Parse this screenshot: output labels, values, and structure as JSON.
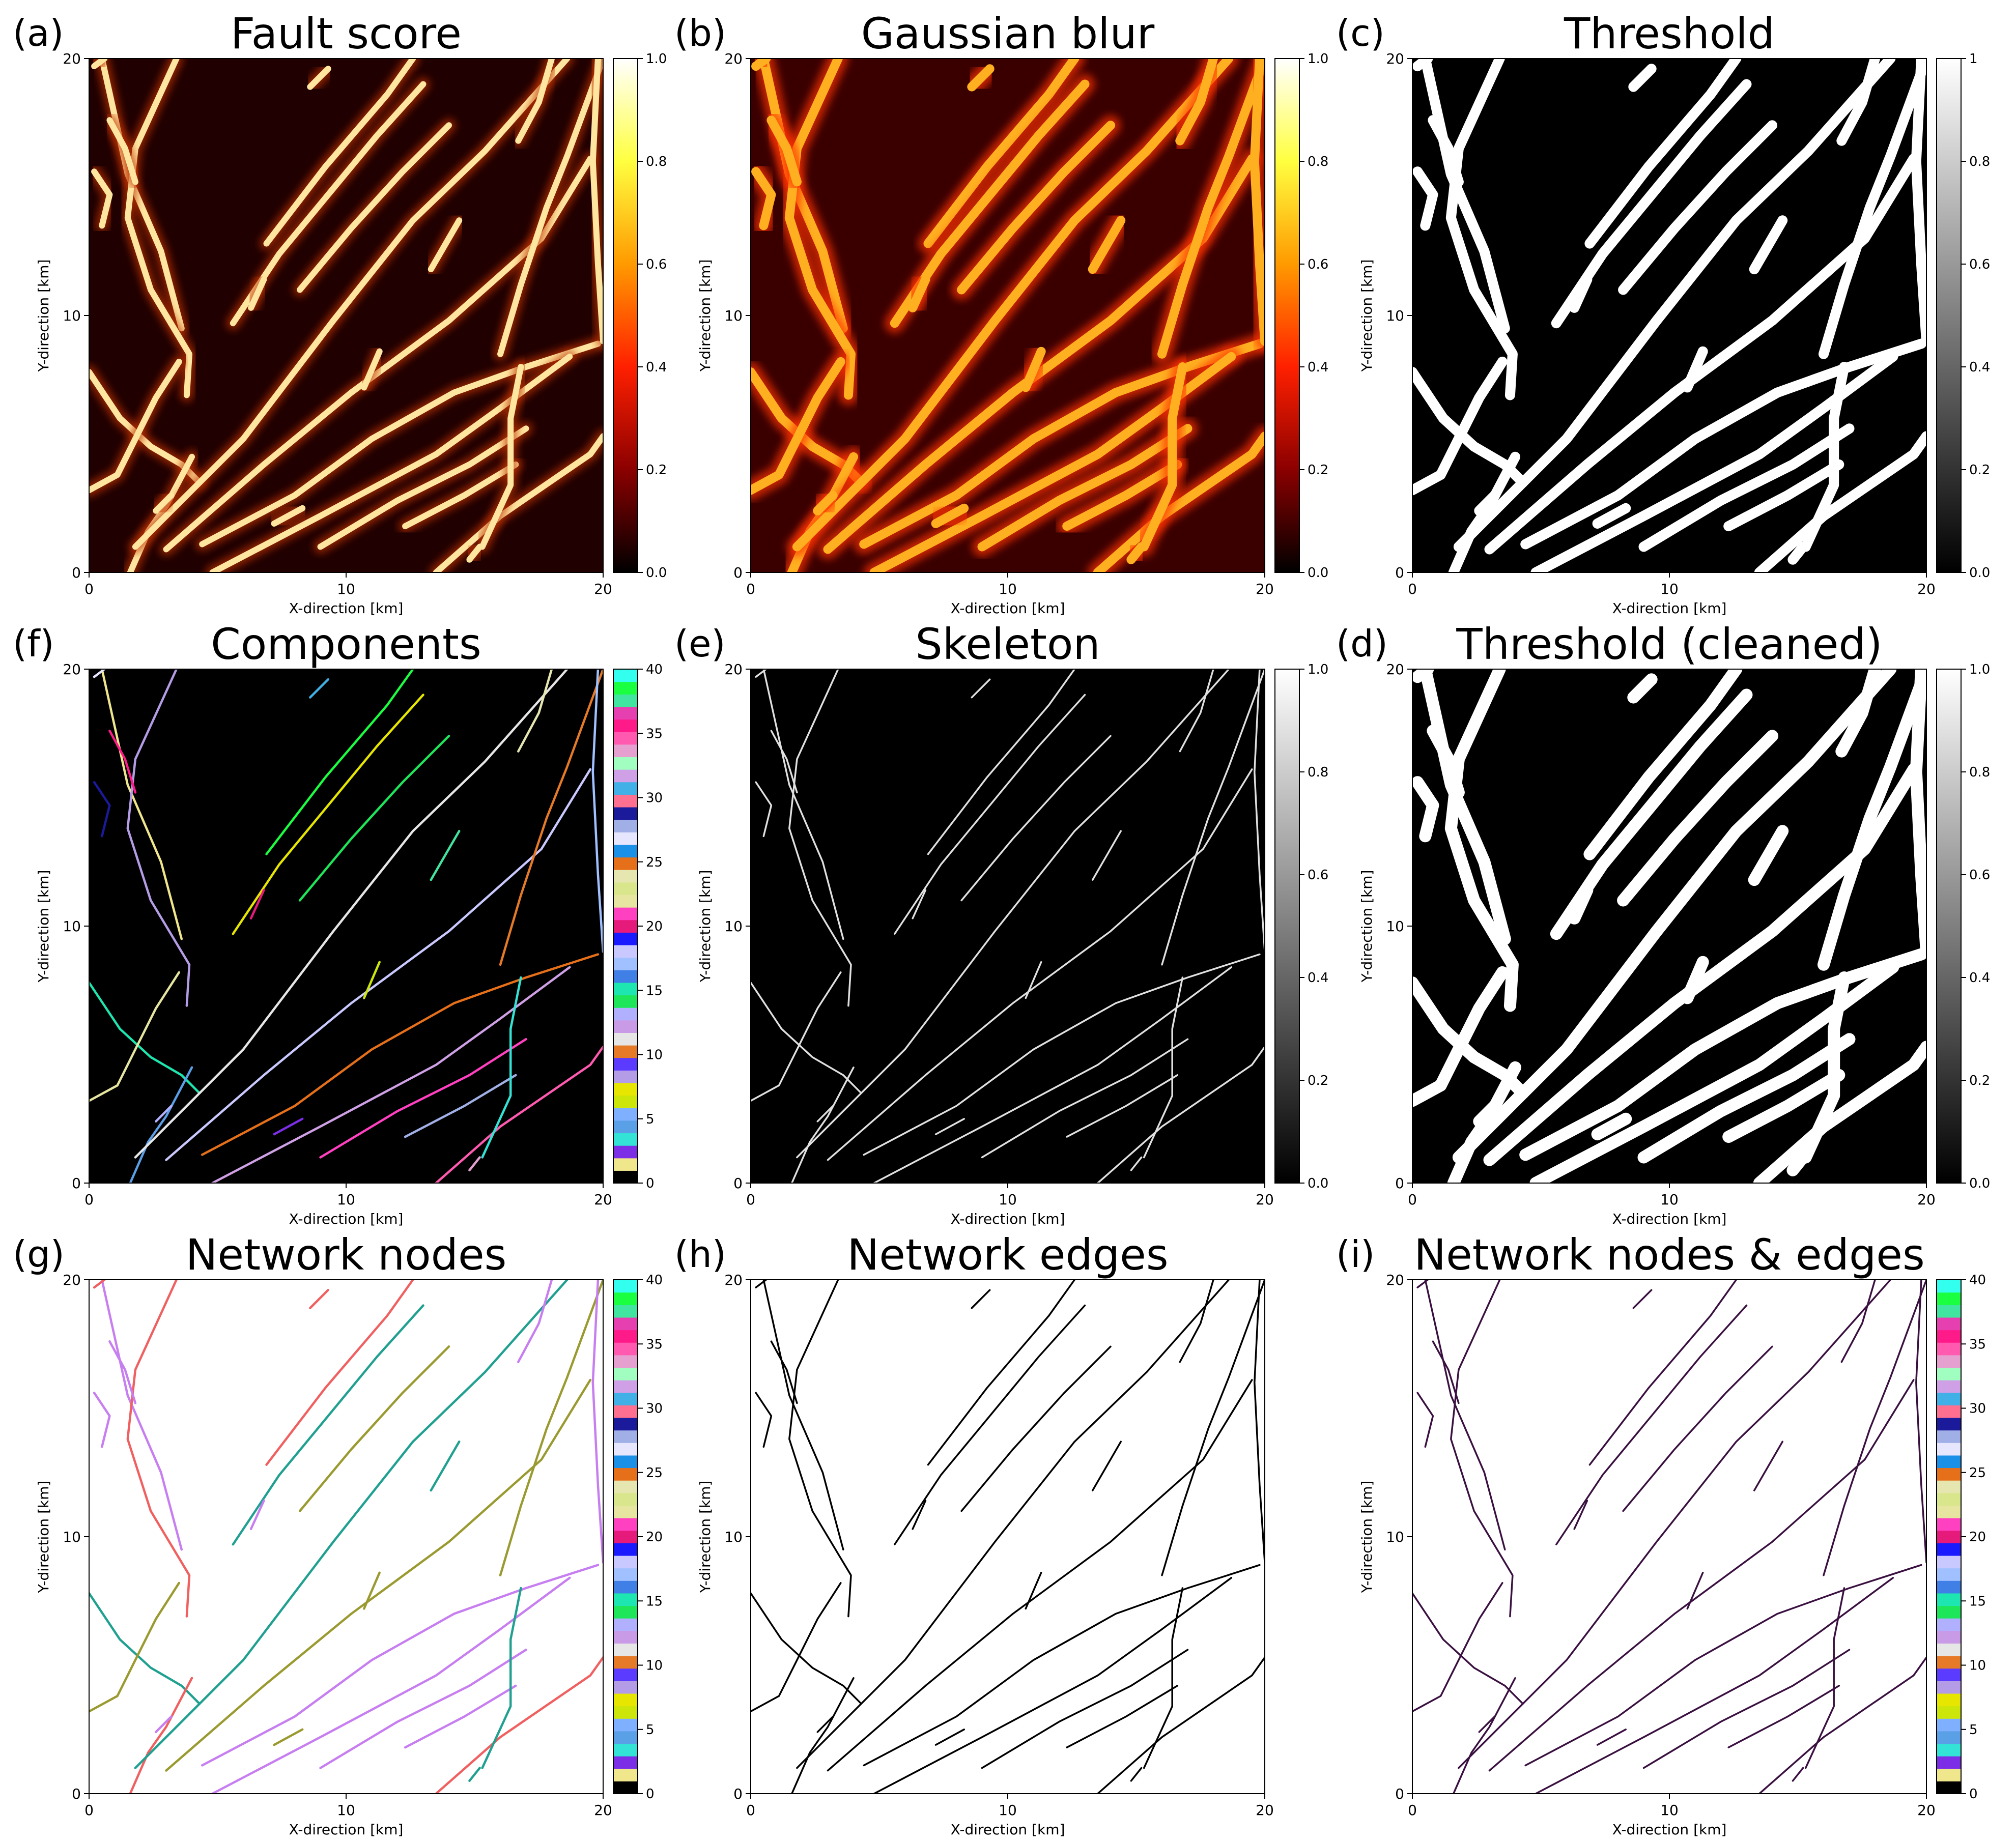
{
  "chart_data": [
    {
      "type": "heatmap",
      "panel_label": "(a)",
      "title": "Fault score",
      "xlabel": "X-direction [km]",
      "ylabel": "Y-direction [km]",
      "xlim": [
        0,
        20
      ],
      "ylim": [
        0,
        20
      ],
      "x_ticks": [
        0,
        10,
        20
      ],
      "y_ticks": [
        0,
        10,
        20
      ],
      "colormap": "hot",
      "background": "#200000",
      "line_color": "#ffe6a0",
      "colorbar": {
        "type": "continuous",
        "range": [
          0,
          1
        ],
        "ticks": [
          "0.0",
          "0.2",
          "0.4",
          "0.6",
          "0.8",
          "1.0"
        ],
        "stops": [
          "#000000",
          "#8b0000",
          "#ff2000",
          "#ff9a00",
          "#ffff40",
          "#ffffff"
        ]
      }
    },
    {
      "type": "heatmap",
      "panel_label": "(b)",
      "title": "Gaussian blur",
      "xlabel": "X-direction [km]",
      "ylabel": "Y-direction [km]",
      "xlim": [
        0,
        20
      ],
      "ylim": [
        0,
        20
      ],
      "x_ticks": [
        0,
        10,
        20
      ],
      "y_ticks": [
        0,
        10,
        20
      ],
      "colormap": "hot",
      "background": "#3a0000",
      "line_color": "#ffb020",
      "colorbar": {
        "type": "continuous",
        "range": [
          0,
          1
        ],
        "ticks": [
          "0.0",
          "0.2",
          "0.4",
          "0.6",
          "0.8",
          "1.0"
        ],
        "stops": [
          "#000000",
          "#8b0000",
          "#ff2000",
          "#ff9a00",
          "#ffff40",
          "#ffffff"
        ]
      }
    },
    {
      "type": "heatmap",
      "panel_label": "(c)",
      "title": "Threshold",
      "xlabel": "X-direction [km]",
      "ylabel": "Y-direction [km]",
      "xlim": [
        0,
        20
      ],
      "ylim": [
        0,
        20
      ],
      "x_ticks": [
        0,
        10,
        20
      ],
      "y_ticks": [
        0,
        10,
        20
      ],
      "colormap": "gray",
      "background": "#000000",
      "line_color": "#ffffff",
      "colorbar": {
        "type": "continuous",
        "range": [
          0,
          1
        ],
        "ticks": [
          "0.0",
          "0.2",
          "0.4",
          "0.6",
          "0.8",
          "1"
        ],
        "stops": [
          "#000000",
          "#ffffff"
        ]
      }
    },
    {
      "type": "heatmap",
      "panel_label": "(f)",
      "title": "Components",
      "xlabel": "X-direction [km]",
      "ylabel": "Y-direction [km]",
      "xlim": [
        0,
        20
      ],
      "ylim": [
        0,
        20
      ],
      "x_ticks": [
        0,
        10,
        20
      ],
      "y_ticks": [
        0,
        10,
        20
      ],
      "colormap": "categorical",
      "background": "#000000",
      "line_color": "multi",
      "colorbar": {
        "type": "discrete",
        "range": [
          0,
          40
        ],
        "ticks": [
          "0",
          "5",
          "10",
          "15",
          "20",
          "25",
          "30",
          "35",
          "40"
        ]
      }
    },
    {
      "type": "heatmap",
      "panel_label": "(e)",
      "title": "Skeleton",
      "xlabel": "X-direction [km]",
      "ylabel": "Y-direction [km]",
      "xlim": [
        0,
        20
      ],
      "ylim": [
        0,
        20
      ],
      "x_ticks": [
        0,
        10,
        20
      ],
      "y_ticks": [
        0,
        10,
        20
      ],
      "colormap": "gray",
      "background": "#000000",
      "line_color": "#e0e0e0",
      "colorbar": {
        "type": "continuous",
        "range": [
          0,
          1
        ],
        "ticks": [
          "0.0",
          "0.2",
          "0.4",
          "0.6",
          "0.8",
          "1.0"
        ],
        "stops": [
          "#000000",
          "#ffffff"
        ]
      }
    },
    {
      "type": "heatmap",
      "panel_label": "(d)",
      "title": "Threshold (cleaned)",
      "xlabel": "X-direction [km]",
      "ylabel": "Y-direction [km]",
      "xlim": [
        0,
        20
      ],
      "ylim": [
        0,
        20
      ],
      "x_ticks": [
        0,
        10,
        20
      ],
      "y_ticks": [
        0,
        10,
        20
      ],
      "colormap": "gray",
      "background": "#000000",
      "line_color": "#ffffff",
      "colorbar": {
        "type": "continuous",
        "range": [
          0,
          1
        ],
        "ticks": [
          "0.0",
          "0.2",
          "0.4",
          "0.6",
          "0.8",
          "1.0"
        ],
        "stops": [
          "#000000",
          "#ffffff"
        ]
      }
    },
    {
      "type": "heatmap",
      "panel_label": "(g)",
      "title": "Network nodes",
      "xlabel": "X-direction [km]",
      "ylabel": "Y-direction [km]",
      "xlim": [
        0,
        20
      ],
      "ylim": [
        0,
        20
      ],
      "x_ticks": [
        0,
        10,
        20
      ],
      "y_ticks": [
        0,
        10,
        20
      ],
      "colormap": "categorical",
      "background": "#ffffff",
      "line_color": "multi-light",
      "colorbar": {
        "type": "discrete",
        "range": [
          0,
          40
        ],
        "ticks": [
          "0",
          "5",
          "10",
          "15",
          "20",
          "25",
          "30",
          "35",
          "40"
        ]
      }
    },
    {
      "type": "heatmap",
      "panel_label": "(h)",
      "title": "Network edges",
      "xlabel": "X-direction [km]",
      "ylabel": "Y-direction [km]",
      "xlim": [
        0,
        20
      ],
      "ylim": [
        0,
        20
      ],
      "x_ticks": [
        0,
        10,
        20
      ],
      "y_ticks": [
        0,
        10,
        20
      ],
      "colormap": "none",
      "background": "#ffffff",
      "line_color": "#000000"
    },
    {
      "type": "heatmap",
      "panel_label": "(i)",
      "title": "Network nodes & edges",
      "xlabel": "X-direction [km]",
      "ylabel": "Y-direction [km]",
      "xlim": [
        0,
        20
      ],
      "ylim": [
        0,
        20
      ],
      "x_ticks": [
        0,
        10,
        20
      ],
      "y_ticks": [
        0,
        10,
        20
      ],
      "colormap": "categorical",
      "background": "#ffffff",
      "line_color": "#3a1040",
      "colorbar": {
        "type": "discrete",
        "range": [
          0,
          40
        ],
        "ticks": [
          "0",
          "5",
          "10",
          "15",
          "20",
          "25",
          "30",
          "35",
          "40"
        ]
      }
    }
  ],
  "discrete_palette": [
    "#000000",
    "#f0e68c",
    "#7b2ee6",
    "#33e3d6",
    "#5aa0e6",
    "#7fb0ff",
    "#cde60a",
    "#e6e600",
    "#b59ce6",
    "#5a3bff",
    "#e67a26",
    "#e6e6e6",
    "#c99ae6",
    "#b0b0ff",
    "#1ee65a",
    "#1ee6b0",
    "#3f7fe6",
    "#a0c0ff",
    "#c9c9ff",
    "#1a1aff",
    "#e61a7a",
    "#ff40c0",
    "#e6e6a0",
    "#d9e68c",
    "#e6e6b0",
    "#e6701a",
    "#1a90e6",
    "#e6e6ff",
    "#a0b0e6",
    "#1a1a9a",
    "#ff7090",
    "#40b0e6",
    "#d0a0e6",
    "#a0ffc0",
    "#e6a0d0",
    "#ff5ab0",
    "#ff1a8a",
    "#e640b0",
    "#40e6a0",
    "#1aff40",
    "#33ffee"
  ],
  "faults": [
    [
      [
        0.5,
        20
      ],
      [
        1.5,
        15.5
      ],
      [
        2.8,
        12.5
      ],
      [
        3.6,
        9.5
      ]
    ],
    [
      [
        3.4,
        20
      ],
      [
        1.8,
        16.5
      ],
      [
        1.5,
        13.8
      ],
      [
        2.4,
        11
      ],
      [
        3.9,
        8.5
      ],
      [
        3.8,
        6.9
      ]
    ],
    [
      [
        0.0,
        7.8
      ],
      [
        1.2,
        6
      ],
      [
        2.4,
        4.9
      ],
      [
        3.6,
        4.2
      ],
      [
        4.3,
        3.5
      ]
    ],
    [
      [
        0.0,
        3.2
      ],
      [
        1.1,
        3.8
      ],
      [
        1.9,
        5.4
      ],
      [
        2.6,
        6.8
      ],
      [
        3.5,
        8.2
      ]
    ],
    [
      [
        0.2,
        15.6
      ],
      [
        0.8,
        14.7
      ],
      [
        0.5,
        13.5
      ]
    ],
    [
      [
        0.8,
        17.6
      ],
      [
        1.4,
        16.5
      ],
      [
        1.8,
        15.2
      ]
    ],
    [
      [
        1.6,
        0
      ],
      [
        2.3,
        1.6
      ],
      [
        3.0,
        2.6
      ],
      [
        4.0,
        4.5
      ]
    ],
    [
      [
        1.8,
        1.0
      ],
      [
        6.0,
        5.2
      ],
      [
        9.5,
        9.8
      ],
      [
        12.6,
        13.7
      ],
      [
        15.4,
        16.4
      ],
      [
        18.6,
        20
      ]
    ],
    [
      [
        3.0,
        0.9
      ],
      [
        6.8,
        4.2
      ],
      [
        10.2,
        7.0
      ],
      [
        14.0,
        9.8
      ],
      [
        17.6,
        13.0
      ],
      [
        19.5,
        16.1
      ]
    ],
    [
      [
        4.4,
        1.1
      ],
      [
        8.0,
        3.0
      ],
      [
        11.0,
        5.2
      ],
      [
        14.2,
        7.0
      ],
      [
        17.0,
        8.0
      ],
      [
        19.8,
        8.9
      ]
    ],
    [
      [
        4.8,
        0.0
      ],
      [
        9.0,
        2.2
      ],
      [
        13.5,
        4.6
      ],
      [
        16.0,
        6.4
      ],
      [
        18.7,
        8.4
      ]
    ],
    [
      [
        6.9,
        12.8
      ],
      [
        9.2,
        15.8
      ],
      [
        11.6,
        18.6
      ],
      [
        12.6,
        20.0
      ]
    ],
    [
      [
        5.6,
        9.7
      ],
      [
        7.4,
        12.4
      ],
      [
        9.3,
        14.7
      ],
      [
        11.2,
        17.0
      ],
      [
        13.0,
        19.0
      ]
    ],
    [
      [
        8.2,
        11.0
      ],
      [
        10.2,
        13.4
      ],
      [
        12.2,
        15.6
      ],
      [
        14.0,
        17.4
      ]
    ],
    [
      [
        9.0,
        1.0
      ],
      [
        12.0,
        2.8
      ],
      [
        14.8,
        4.2
      ],
      [
        17.0,
        5.6
      ]
    ],
    [
      [
        12.3,
        1.8
      ],
      [
        14.6,
        3.0
      ],
      [
        16.6,
        4.2
      ]
    ],
    [
      [
        13.5,
        0.0
      ],
      [
        16.0,
        2.2
      ],
      [
        19.5,
        4.6
      ],
      [
        20.0,
        5.3
      ]
    ],
    [
      [
        15.3,
        1.0
      ],
      [
        16.4,
        3.4
      ],
      [
        16.4,
        6.0
      ],
      [
        16.8,
        8.0
      ]
    ],
    [
      [
        16.0,
        8.5
      ],
      [
        16.8,
        11.2
      ],
      [
        17.8,
        14.2
      ],
      [
        18.6,
        16.2
      ],
      [
        20.0,
        20.0
      ]
    ],
    [
      [
        19.8,
        20.0
      ],
      [
        19.6,
        16.0
      ],
      [
        19.8,
        12.0
      ],
      [
        20.0,
        9.0
      ]
    ],
    [
      [
        18.0,
        20.0
      ],
      [
        17.5,
        18.3
      ],
      [
        16.7,
        16.8
      ]
    ],
    [
      [
        8.6,
        18.9
      ],
      [
        9.3,
        19.6
      ]
    ],
    [
      [
        13.3,
        11.8
      ],
      [
        14.4,
        13.7
      ]
    ],
    [
      [
        10.7,
        7.2
      ],
      [
        11.3,
        8.6
      ]
    ],
    [
      [
        2.6,
        2.4
      ],
      [
        3.2,
        3.0
      ]
    ],
    [
      [
        6.3,
        10.3
      ],
      [
        6.8,
        11.4
      ]
    ],
    [
      [
        0.2,
        19.7
      ],
      [
        0.6,
        20.0
      ]
    ],
    [
      [
        14.8,
        0.5
      ],
      [
        15.2,
        1.0
      ]
    ],
    [
      [
        7.2,
        1.9
      ],
      [
        8.3,
        2.5
      ]
    ]
  ]
}
